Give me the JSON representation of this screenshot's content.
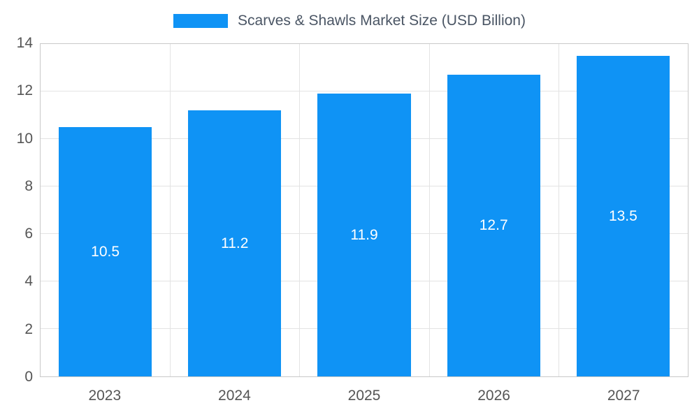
{
  "chart_data": {
    "type": "bar",
    "title": "Scarves & Shawls Market Size (USD Billion)",
    "categories": [
      "2023",
      "2024",
      "2025",
      "2026",
      "2027"
    ],
    "values": [
      10.5,
      11.2,
      11.9,
      12.7,
      13.5
    ],
    "value_labels": [
      "10.5",
      "11.2",
      "11.9",
      "12.7",
      "13.5"
    ],
    "xlabel": "",
    "ylabel": "",
    "ylim": [
      0,
      14
    ],
    "yticks": [
      0,
      2,
      4,
      6,
      8,
      10,
      12,
      14
    ],
    "grid": "on",
    "legend_position": "top",
    "legend_entries": [
      "Scarves & Shawls Market Size (USD Billion)"
    ],
    "colors": {
      "bar": "#0f93f5",
      "grid": "#e3e3e3",
      "frame": "#c9c9c9",
      "axis_text": "#555555",
      "title_text": "#4a5564",
      "bar_label_text": "#ffffff",
      "background": "#ffffff"
    }
  }
}
